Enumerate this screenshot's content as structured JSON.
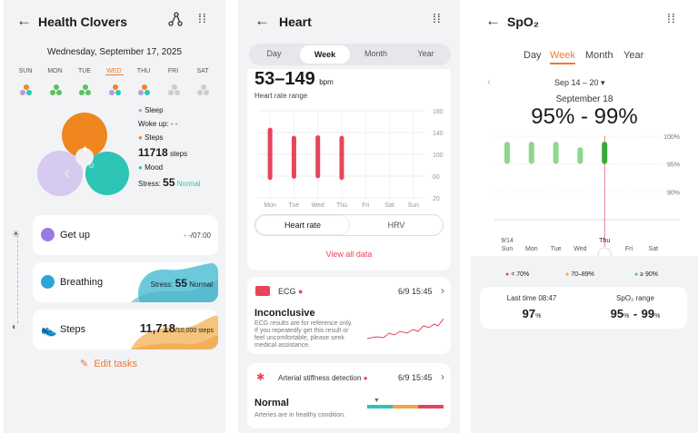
{
  "health": {
    "title": "Health Clovers",
    "date": "Wednesday, September 17, 2025",
    "days": [
      "SUN",
      "MON",
      "TUE",
      "WED",
      "THU",
      "FRI",
      "SAT"
    ],
    "legend": {
      "sleep": "Sleep",
      "wokeup_label": "Woke up:",
      "wokeup_value": "- -",
      "steps": "Steps",
      "steps_value": "11718",
      "steps_unit": "steps",
      "mood": "Mood",
      "stress_label": "Stress:",
      "stress_value": "55",
      "stress_status": "Normal"
    },
    "getup": {
      "label": "Get up",
      "value": "- -/07:00"
    },
    "breathing": {
      "label": "Breathing",
      "stress_label": "Stress:",
      "stress_value": "55",
      "stress_status": "Normal"
    },
    "steps_card": {
      "label": "Steps",
      "value": "11,718",
      "goal": "/10,000 steps"
    },
    "edit_tasks": "Edit tasks"
  },
  "heart": {
    "title": "Heart",
    "tabs": [
      "Day",
      "Week",
      "Month",
      "Year"
    ],
    "active_tab": "Week",
    "range_value": "53–149",
    "range_unit": "bpm",
    "range_label": "Heart rate range",
    "subtabs": [
      "Heart rate",
      "HRV"
    ],
    "view_all": "View all data",
    "ecg": {
      "title": "ECG",
      "time": "6/9 15:45",
      "result": "Inconclusive",
      "description": "ECG results are for reference only. If you repeatedly get this result or feel uncomfortable, please seek medical assistance."
    },
    "arterial": {
      "title": "Arterial stiffness detection",
      "time": "6/9 15:45",
      "result": "Normal",
      "description": "Arteries are in healthy condition."
    },
    "chart_data": {
      "type": "bar",
      "categories": [
        "Mon",
        "Tue",
        "Wed",
        "Thu",
        "Fri",
        "Sat",
        "Sun"
      ],
      "series": [
        {
          "low": [
            53,
            55,
            56,
            53,
            null,
            null,
            null
          ],
          "high": [
            149,
            134,
            135,
            134,
            null,
            null,
            null
          ]
        }
      ],
      "y_ticks": [
        20,
        60,
        100,
        140,
        180
      ],
      "ylim": [
        20,
        180
      ]
    }
  },
  "spo2": {
    "title": "SpO₂",
    "tabs": [
      "Day",
      "Week",
      "Month",
      "Year"
    ],
    "active_tab": "Week",
    "week_range": "Sep 14 – 20",
    "selected_date": "September 18",
    "selected_value": "95% - 99%",
    "y_ticks": [
      "100%",
      "95%",
      "90%"
    ],
    "x_start_label": "9/14",
    "days": [
      "Sun",
      "Mon",
      "Tue",
      "Wed",
      "Thu",
      "Fri",
      "Sat"
    ],
    "legend": [
      "< 70%",
      "70–89%",
      "≥ 90%"
    ],
    "legend_colors": [
      "#e8445a",
      "#f5a25d",
      "#5bc25b"
    ],
    "last_time_label": "Last time 08:47",
    "last_time_value": "97",
    "range_label": "SpO₂ range",
    "range_low": "95",
    "range_high": "99",
    "chart_data": {
      "type": "bar",
      "categories": [
        "Sun",
        "Mon",
        "Tue",
        "Wed",
        "Thu",
        "Fri",
        "Sat"
      ],
      "series": [
        {
          "low": [
            95,
            95,
            95,
            95,
            95,
            null,
            null
          ],
          "high": [
            99,
            99,
            99,
            98,
            99,
            null,
            null
          ]
        }
      ],
      "selected": "Thu",
      "ylim": [
        85,
        100
      ]
    }
  },
  "colors": {
    "accent": "#f07a2c",
    "red": "#e8445a",
    "teal": "#2ec4b6",
    "purple": "#b39ddb",
    "green": "#5bc25b"
  }
}
